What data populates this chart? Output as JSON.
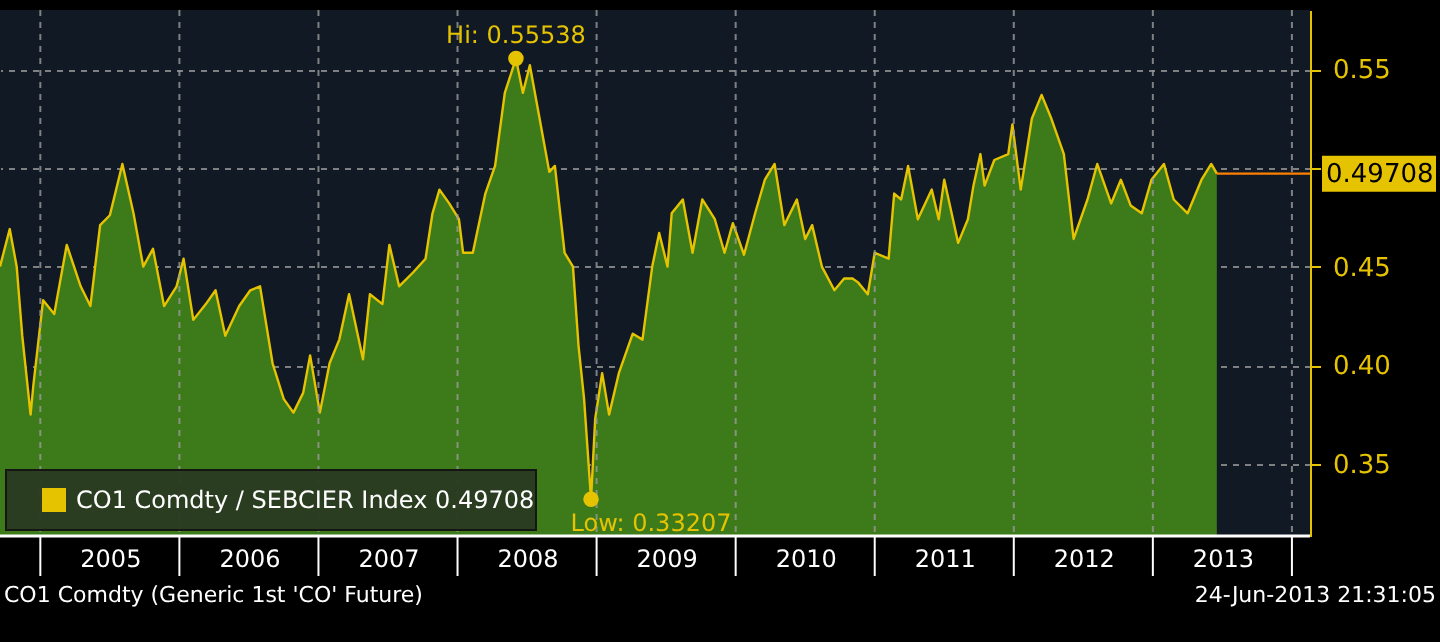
{
  "chart_data": {
    "type": "area",
    "x": [
      2004.71,
      2004.78,
      2004.83,
      2004.87,
      2004.93,
      2004.95,
      2005.02,
      2005.1,
      2005.19,
      2005.29,
      2005.36,
      2005.43,
      2005.5,
      2005.59,
      2005.67,
      2005.74,
      2005.81,
      2005.89,
      2005.98,
      2006.03,
      2006.1,
      2006.19,
      2006.26,
      2006.33,
      2006.43,
      2006.51,
      2006.58,
      2006.67,
      2006.75,
      2006.82,
      2006.89,
      2006.94,
      2007.01,
      2007.08,
      2007.15,
      2007.22,
      2007.32,
      2007.37,
      2007.46,
      2007.51,
      2007.58,
      2007.68,
      2007.77,
      2007.82,
      2007.87,
      2007.94,
      2008.01,
      2008.04,
      2008.11,
      2008.2,
      2008.27,
      2008.34,
      2008.42,
      2008.47,
      2008.52,
      2008.59,
      2008.66,
      2008.7,
      2008.77,
      2008.83,
      2008.87,
      2008.91,
      2008.96,
      2008.99,
      2009.04,
      2009.09,
      2009.16,
      2009.26,
      2009.33,
      2009.4,
      2009.45,
      2009.51,
      2009.54,
      2009.62,
      2009.69,
      2009.76,
      2009.85,
      2009.92,
      2009.98,
      2010.06,
      2010.14,
      2010.21,
      2010.28,
      2010.35,
      2010.44,
      2010.5,
      2010.55,
      2010.62,
      2010.71,
      2010.78,
      2010.84,
      2010.88,
      2010.95,
      2011.0,
      2011.1,
      2011.14,
      2011.19,
      2011.24,
      2011.31,
      2011.41,
      2011.46,
      2011.5,
      2011.6,
      2011.67,
      2011.71,
      2011.76,
      2011.79,
      2011.86,
      2011.96,
      2011.99,
      2012.05,
      2012.13,
      2012.2,
      2012.27,
      2012.36,
      2012.43,
      2012.53,
      2012.6,
      2012.7,
      2012.77,
      2012.84,
      2012.92,
      2012.99,
      2013.08,
      2013.15,
      2013.25,
      2013.35,
      2013.42,
      2013.46
    ],
    "series": [
      {
        "name": "CO1 Comdty / SEBCIER Index 0.49708",
        "color": "#e6c300",
        "values": [
          0.45,
          0.469,
          0.45,
          0.415,
          0.375,
          0.39,
          0.433,
          0.426,
          0.461,
          0.44,
          0.43,
          0.471,
          0.476,
          0.502,
          0.477,
          0.45,
          0.459,
          0.43,
          0.44,
          0.454,
          0.423,
          0.431,
          0.438,
          0.415,
          0.43,
          0.438,
          0.44,
          0.401,
          0.383,
          0.376,
          0.386,
          0.405,
          0.376,
          0.401,
          0.413,
          0.436,
          0.403,
          0.436,
          0.431,
          0.461,
          0.44,
          0.447,
          0.454,
          0.477,
          0.489,
          0.482,
          0.474,
          0.457,
          0.457,
          0.487,
          0.501,
          0.538,
          0.55538,
          0.538,
          0.552,
          0.525,
          0.498,
          0.501,
          0.457,
          0.45,
          0.41,
          0.383,
          0.33207,
          0.373,
          0.396,
          0.375,
          0.396,
          0.416,
          0.413,
          0.45,
          0.467,
          0.45,
          0.477,
          0.484,
          0.457,
          0.484,
          0.474,
          0.457,
          0.472,
          0.456,
          0.477,
          0.494,
          0.502,
          0.471,
          0.484,
          0.464,
          0.471,
          0.45,
          0.438,
          0.444,
          0.444,
          0.442,
          0.436,
          0.457,
          0.454,
          0.487,
          0.484,
          0.501,
          0.474,
          0.489,
          0.474,
          0.494,
          0.462,
          0.474,
          0.491,
          0.507,
          0.491,
          0.504,
          0.507,
          0.522,
          0.489,
          0.525,
          0.537,
          0.525,
          0.507,
          0.464,
          0.484,
          0.502,
          0.482,
          0.494,
          0.481,
          0.477,
          0.494,
          0.502,
          0.484,
          0.477,
          0.494,
          0.502,
          0.49708
        ]
      }
    ],
    "xlim": [
      2004.71,
      2014.13
    ],
    "xticks": [
      {
        "value": 2005,
        "label": null
      },
      {
        "value": 2005.5,
        "label": "2005"
      },
      {
        "value": 2006,
        "label": null
      },
      {
        "value": 2006.5,
        "label": "2006"
      },
      {
        "value": 2007,
        "label": null
      },
      {
        "value": 2007.5,
        "label": "2007"
      },
      {
        "value": 2008,
        "label": null
      },
      {
        "value": 2008.5,
        "label": "2008"
      },
      {
        "value": 2009,
        "label": null
      },
      {
        "value": 2009.5,
        "label": "2009"
      },
      {
        "value": 2010,
        "label": null
      },
      {
        "value": 2010.5,
        "label": "2010"
      },
      {
        "value": 2011,
        "label": null
      },
      {
        "value": 2011.5,
        "label": "2011"
      },
      {
        "value": 2012,
        "label": null
      },
      {
        "value": 2012.5,
        "label": "2012"
      },
      {
        "value": 2013,
        "label": null
      },
      {
        "value": 2013.5,
        "label": "2013"
      },
      {
        "value": 2014,
        "label": null
      }
    ],
    "ylim": [
      0.3135,
      0.58
    ],
    "yticks": [
      0.35,
      {
        "value": 0.4,
        "label": "0.40"
      },
      0.45,
      {
        "value": 0.5,
        "label": null
      },
      0.55
    ],
    "ref_lines": [
      {
        "axis": "y",
        "value": 0.49708,
        "label": "0.49708",
        "color": "#ff8000"
      }
    ],
    "annotations": [
      {
        "text": "Hi: 0.55538",
        "x": 2008.42,
        "y": 0.55538
      },
      {
        "text": "Low: 0.33207",
        "x": 2008.96,
        "y": 0.33207
      },
      "CO1 Comdty (Generic 1st 'CO' Future)",
      "24-Jun-2013 21:31:05"
    ],
    "grid": true,
    "legend": "bottom left"
  }
}
